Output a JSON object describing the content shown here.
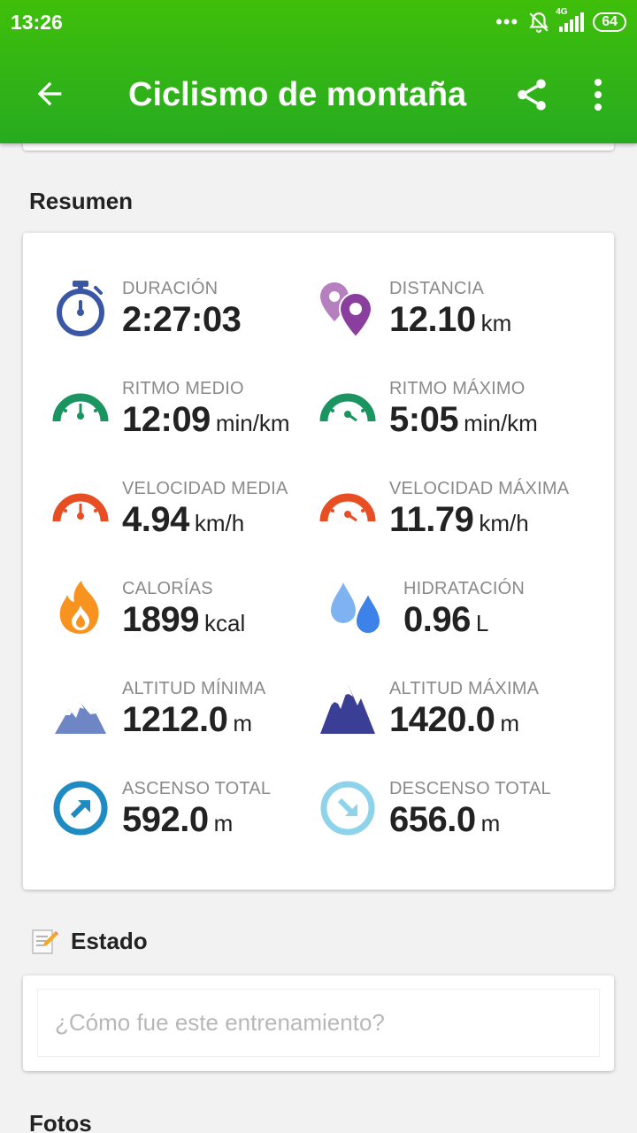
{
  "status_bar": {
    "time": "13:26",
    "network": "4G",
    "battery": "64"
  },
  "toolbar": {
    "title": "Ciclismo de montaña"
  },
  "sections": {
    "summary": "Resumen",
    "estado": "Estado",
    "fotos": "Fotos"
  },
  "stats": [
    {
      "label": "DURACIÓN",
      "value": "2:27:03",
      "unit": "",
      "icon": "stopwatch-icon"
    },
    {
      "label": "DISTANCIA",
      "value": "12.10",
      "unit": "km",
      "icon": "location-pins-icon"
    },
    {
      "label": "RITMO MEDIO",
      "value": "12:09",
      "unit": "min/km",
      "icon": "pace-gauge-icon"
    },
    {
      "label": "RITMO MÁXIMO",
      "value": "5:05",
      "unit": "min/km",
      "icon": "max-pace-gauge-icon"
    },
    {
      "label": "VELOCIDAD MEDIA",
      "value": "4.94",
      "unit": "km/h",
      "icon": "speed-gauge-icon"
    },
    {
      "label": "VELOCIDAD MÁXIMA",
      "value": "11.79",
      "unit": "km/h",
      "icon": "max-speed-gauge-icon"
    },
    {
      "label": "CALORÍAS",
      "value": "1899",
      "unit": "kcal",
      "icon": "flame-icon"
    },
    {
      "label": "HIDRATACIÓN",
      "value": "0.96",
      "unit": "L",
      "icon": "water-drops-icon"
    },
    {
      "label": "ALTITUD MÍNIMA",
      "value": "1212.0",
      "unit": "m",
      "icon": "mountain-low-icon"
    },
    {
      "label": "ALTITUD MÁXIMA",
      "value": "1420.0",
      "unit": "m",
      "icon": "mountain-high-icon"
    },
    {
      "label": "ASCENSO TOTAL",
      "value": "592.0",
      "unit": "m",
      "icon": "ascent-arrow-icon"
    },
    {
      "label": "DESCENSO TOTAL",
      "value": "656.0",
      "unit": "m",
      "icon": "descent-arrow-icon"
    }
  ],
  "status_input": {
    "placeholder": "¿Cómo fue este entrenamiento?"
  },
  "colors": {
    "appbar": "#2fb514",
    "stopwatch": "#3a57a6",
    "pins_light": "#b57fc0",
    "pins_dark": "#8a3e9d",
    "pace": "#1a9460",
    "speed": "#e84e24",
    "flame": "#f7931e",
    "drops_light": "#7fb2f0",
    "drops_dark": "#3d82e8",
    "mountain_low": "#6f86c4",
    "mountain_high": "#3b3e95",
    "ascent": "#1e8bc3",
    "descent": "#8fd3ea"
  }
}
